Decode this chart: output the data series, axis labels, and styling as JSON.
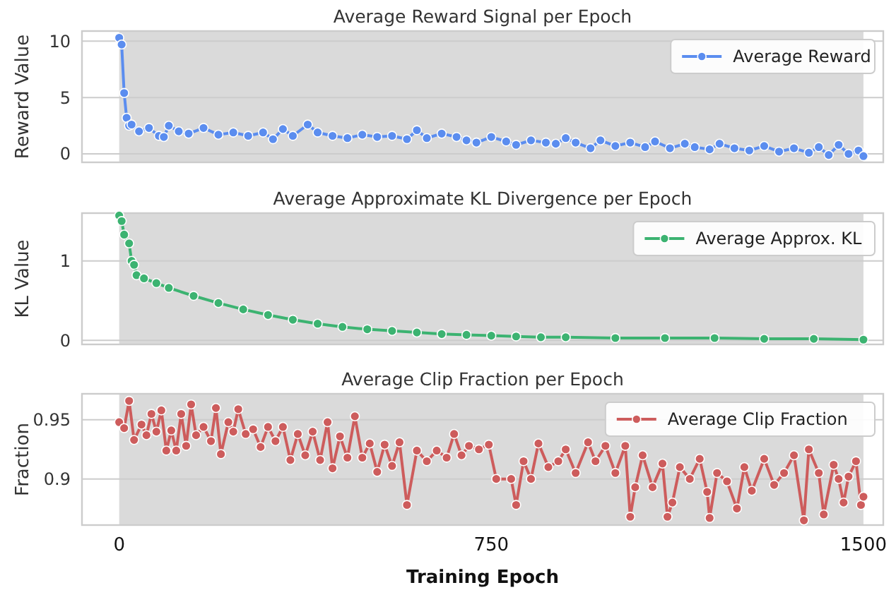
{
  "chart_data": [
    {
      "type": "line",
      "title": "Average Reward Signal per Epoch",
      "ylabel": "Reward Value",
      "xlim": [
        -75,
        1540
      ],
      "ylim": [
        -0.75,
        10.9
      ],
      "yticks": [
        0,
        5,
        10
      ],
      "tick_labels": "y",
      "grid": "y",
      "legend": "top right",
      "marker": "circle",
      "line_style": "solid",
      "bands": [
        {
          "axis": "x",
          "from": 0,
          "to": 1500,
          "color": "#dadada"
        }
      ],
      "series": [
        {
          "name": "Average Reward",
          "color": "#5b8def",
          "x": [
            0,
            5,
            10,
            15,
            20,
            25,
            40,
            60,
            80,
            90,
            100,
            120,
            140,
            170,
            200,
            230,
            260,
            290,
            310,
            330,
            350,
            380,
            400,
            430,
            460,
            490,
            520,
            550,
            580,
            600,
            620,
            650,
            680,
            700,
            720,
            750,
            780,
            800,
            830,
            860,
            880,
            900,
            920,
            950,
            970,
            1000,
            1030,
            1060,
            1080,
            1110,
            1140,
            1160,
            1190,
            1210,
            1240,
            1270,
            1300,
            1330,
            1360,
            1390,
            1410,
            1430,
            1450,
            1470,
            1490,
            1500
          ],
          "values": [
            10.3,
            9.7,
            5.4,
            3.2,
            2.5,
            2.6,
            2.0,
            2.3,
            1.6,
            1.5,
            2.5,
            2.0,
            1.8,
            2.3,
            1.7,
            1.9,
            1.6,
            1.9,
            1.3,
            2.2,
            1.6,
            2.6,
            1.9,
            1.6,
            1.4,
            1.7,
            1.5,
            1.6,
            1.3,
            2.1,
            1.4,
            1.8,
            1.5,
            1.2,
            1.0,
            1.5,
            1.1,
            0.8,
            1.2,
            1.0,
            0.9,
            1.4,
            1.0,
            0.5,
            1.2,
            0.7,
            1.0,
            0.6,
            1.1,
            0.5,
            0.9,
            0.6,
            0.4,
            0.9,
            0.5,
            0.3,
            0.7,
            0.2,
            0.5,
            0.1,
            0.6,
            -0.1,
            0.8,
            0.0,
            0.3,
            -0.2
          ]
        }
      ]
    },
    {
      "type": "line",
      "title": "Average Approximate KL Divergence per Epoch",
      "ylabel": "KL Value",
      "xlim": [
        -75,
        1540
      ],
      "ylim": [
        -0.05,
        1.6
      ],
      "yticks": [
        0,
        1
      ],
      "tick_labels": "y",
      "grid": "y",
      "legend": "top right",
      "marker": "circle",
      "line_style": "solid",
      "bands": [
        {
          "axis": "x",
          "from": 0,
          "to": 1500,
          "color": "#dadada"
        }
      ],
      "series": [
        {
          "name": "Average Approx. KL",
          "color": "#3cb371",
          "x": [
            0,
            5,
            10,
            20,
            25,
            30,
            35,
            50,
            75,
            100,
            150,
            200,
            250,
            300,
            350,
            400,
            450,
            500,
            550,
            600,
            650,
            700,
            750,
            800,
            850,
            900,
            1000,
            1100,
            1200,
            1300,
            1400,
            1500
          ],
          "values": [
            1.57,
            1.5,
            1.33,
            1.22,
            1.0,
            0.95,
            0.82,
            0.78,
            0.72,
            0.66,
            0.56,
            0.47,
            0.39,
            0.32,
            0.26,
            0.21,
            0.17,
            0.14,
            0.12,
            0.1,
            0.08,
            0.07,
            0.06,
            0.05,
            0.04,
            0.04,
            0.03,
            0.03,
            0.03,
            0.02,
            0.02,
            0.01
          ]
        }
      ]
    },
    {
      "type": "line",
      "title": "Average Clip Fraction per Epoch",
      "xlabel": "Training Epoch",
      "ylabel": "Fraction",
      "xlim": [
        -75,
        1540
      ],
      "xticks": [
        0,
        750,
        1500
      ],
      "ylim": [
        0.861,
        0.972
      ],
      "yticks": [
        0.9,
        0.95
      ],
      "grid": "y",
      "legend": "top right",
      "marker": "circle",
      "line_style": "solid",
      "bands": [
        {
          "axis": "x",
          "from": 0,
          "to": 1500,
          "color": "#dadada"
        }
      ],
      "series": [
        {
          "name": "Average Clip Fraction",
          "color": "#cd5c5c",
          "x": [
            0,
            10,
            20,
            30,
            45,
            55,
            65,
            75,
            85,
            95,
            105,
            115,
            125,
            135,
            145,
            155,
            170,
            185,
            195,
            205,
            220,
            230,
            240,
            255,
            270,
            285,
            300,
            315,
            330,
            345,
            360,
            375,
            390,
            405,
            420,
            430,
            445,
            460,
            475,
            490,
            505,
            520,
            535,
            550,
            565,
            580,
            600,
            620,
            640,
            660,
            675,
            690,
            705,
            725,
            745,
            760,
            790,
            800,
            815,
            830,
            845,
            865,
            885,
            900,
            920,
            945,
            960,
            980,
            1000,
            1020,
            1030,
            1040,
            1055,
            1075,
            1095,
            1105,
            1115,
            1130,
            1150,
            1170,
            1185,
            1190,
            1205,
            1225,
            1245,
            1260,
            1275,
            1300,
            1320,
            1340,
            1360,
            1380,
            1390,
            1410,
            1420,
            1440,
            1450,
            1460,
            1470,
            1485,
            1495,
            1500
          ],
          "values": [
            0.948,
            0.943,
            0.966,
            0.933,
            0.946,
            0.937,
            0.955,
            0.94,
            0.958,
            0.924,
            0.941,
            0.924,
            0.955,
            0.928,
            0.963,
            0.937,
            0.944,
            0.932,
            0.96,
            0.921,
            0.948,
            0.94,
            0.959,
            0.938,
            0.942,
            0.927,
            0.944,
            0.932,
            0.944,
            0.916,
            0.938,
            0.92,
            0.94,
            0.916,
            0.948,
            0.909,
            0.936,
            0.918,
            0.953,
            0.918,
            0.93,
            0.906,
            0.929,
            0.911,
            0.931,
            0.878,
            0.924,
            0.915,
            0.924,
            0.918,
            0.938,
            0.92,
            0.928,
            0.925,
            0.929,
            0.9,
            0.9,
            0.878,
            0.915,
            0.9,
            0.93,
            0.91,
            0.915,
            0.925,
            0.905,
            0.931,
            0.915,
            0.928,
            0.905,
            0.928,
            0.868,
            0.893,
            0.92,
            0.893,
            0.913,
            0.868,
            0.88,
            0.91,
            0.9,
            0.917,
            0.889,
            0.867,
            0.905,
            0.898,
            0.875,
            0.91,
            0.89,
            0.917,
            0.895,
            0.905,
            0.92,
            0.865,
            0.925,
            0.905,
            0.87,
            0.912,
            0.9,
            0.88,
            0.902,
            0.915,
            0.878,
            0.885
          ]
        }
      ]
    }
  ]
}
